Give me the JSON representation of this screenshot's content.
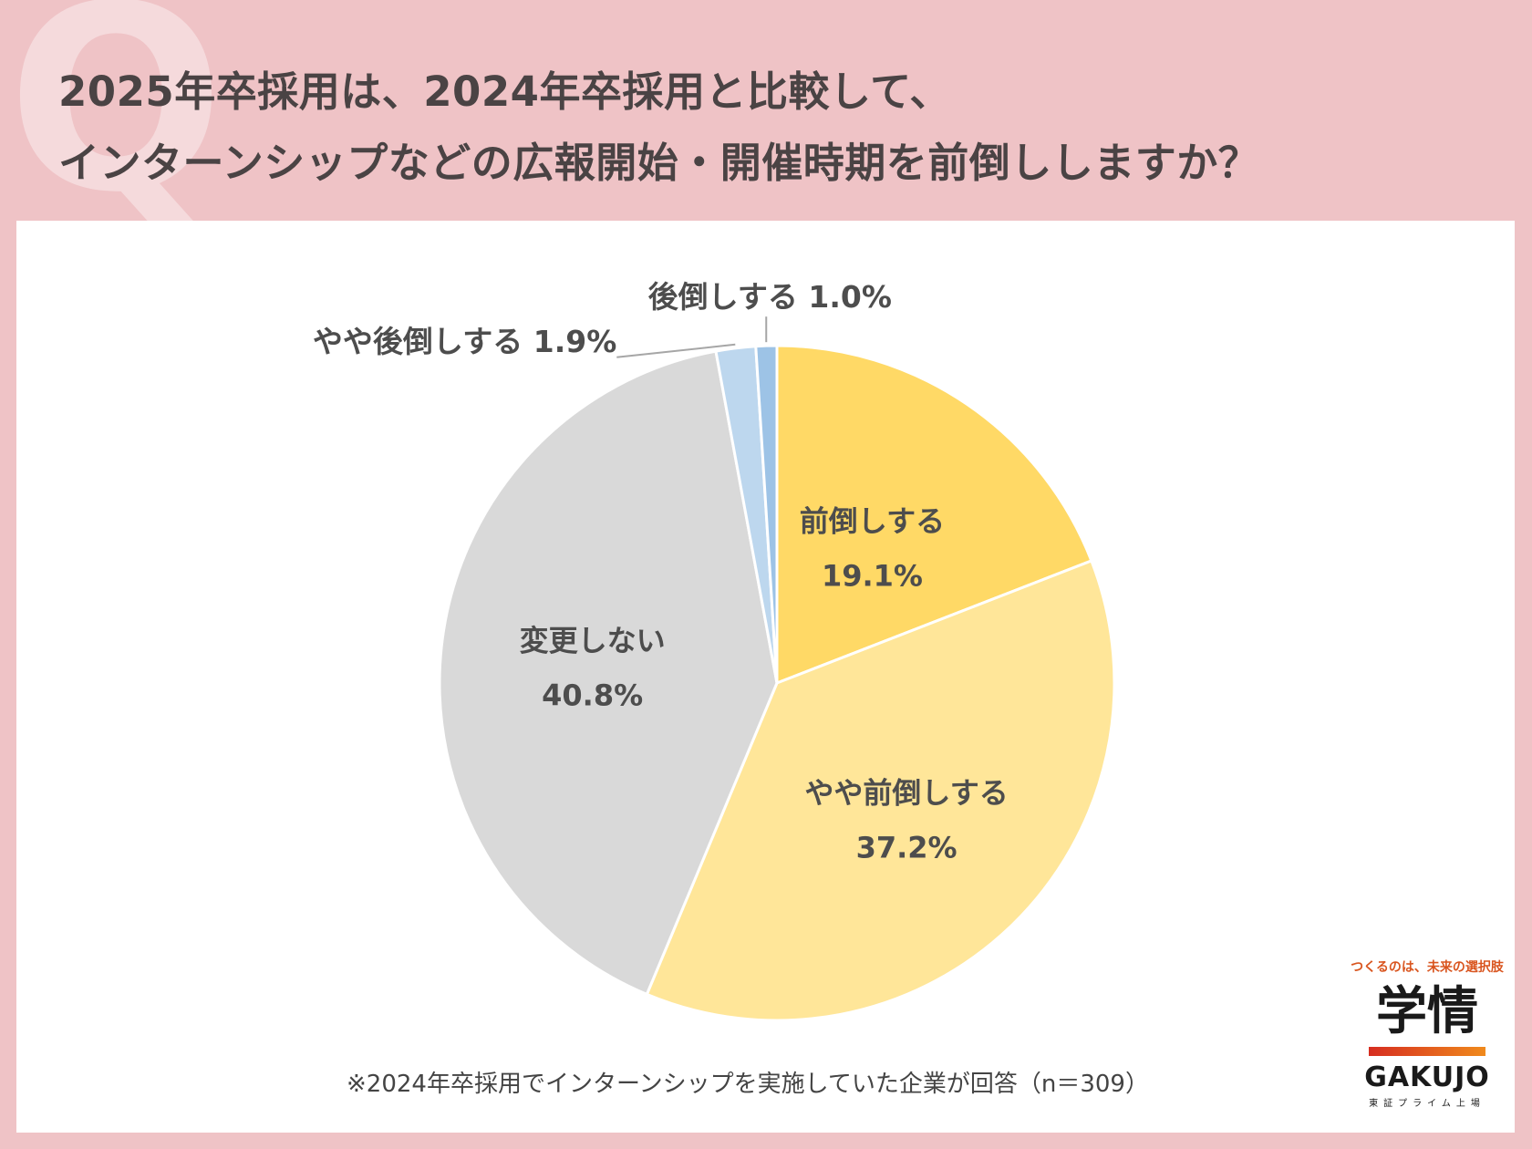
{
  "header": {
    "q_mark": "Q",
    "title_line1": "2025年卒採用は、2024年卒採用と比較して、",
    "title_line2": "インターンシップなどの広報開始・開催時期を前倒ししますか？"
  },
  "chart_data": {
    "type": "pie",
    "start_angle_deg": 0,
    "direction": "clockwise",
    "slices": [
      {
        "label": "前倒しする",
        "value": 19.1,
        "display": "19.1%",
        "color": "#ffd966"
      },
      {
        "label": "やや前倒しする",
        "value": 37.2,
        "display": "37.2%",
        "color": "#ffe699"
      },
      {
        "label": "変更しない",
        "value": 40.8,
        "display": "40.8%",
        "color": "#d9d9d9"
      },
      {
        "label": "やや後倒しする",
        "value": 1.9,
        "display": "1.9%",
        "color": "#bdd7ee"
      },
      {
        "label": "後倒しする",
        "value": 1.0,
        "display": "1.0%",
        "color": "#9dc3e6"
      }
    ],
    "callouts": {
      "やや後倒しする": "やや後倒しする 1.9%",
      "後倒しする": "後倒しする 1.0%"
    }
  },
  "footnote": "※2024年卒採用でインターンシップを実施していた企業が回答（n＝309）",
  "logo": {
    "tagline": "つくるのは、未来の選択肢",
    "kanji": "学情",
    "name": "GAKUJO",
    "sub": "東証プライム上場"
  }
}
